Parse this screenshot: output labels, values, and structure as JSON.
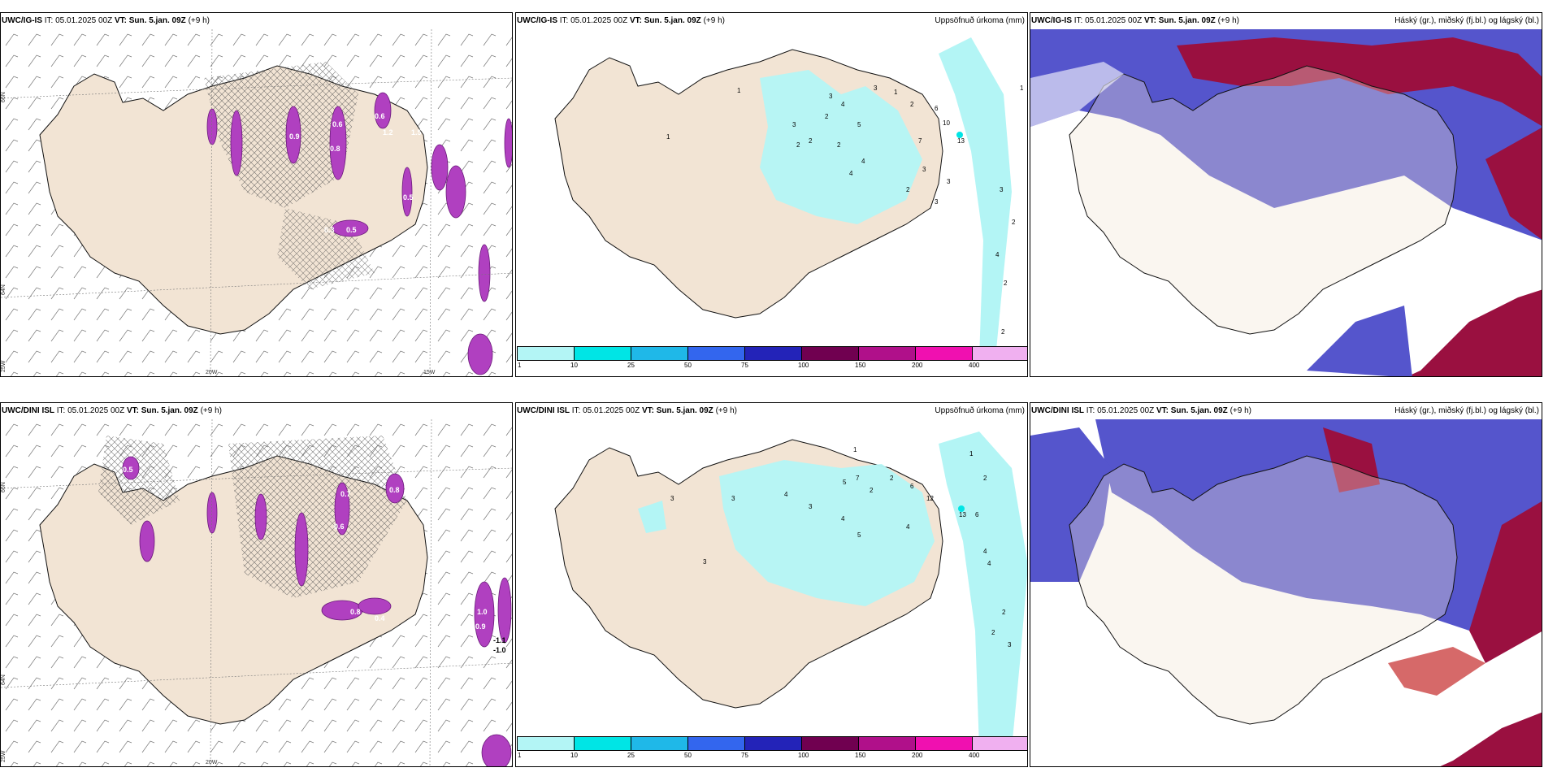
{
  "panels": [
    {
      "model": "UWC/IG-IS",
      "it": "IT: 05.01.2025 00Z",
      "vt": "VT: Sun. 5.jan. 09Z",
      "offset": "(+9 h)",
      "right": ""
    },
    {
      "model": "UWC/IG-IS",
      "it": "IT: 05.01.2025 00Z",
      "vt": "VT: Sun. 5.jan. 09Z",
      "offset": "(+9 h)",
      "right": "Uppsöfnuð úrkoma (mm)"
    },
    {
      "model": "UWC/IG-IS",
      "it": "IT: 05.01.2025 00Z",
      "vt": "VT: Sun. 5.jan. 09Z",
      "offset": "(+9 h)",
      "right": "Háský (gr.), miðský (fj.bl.) og lágský (bl.)"
    },
    {
      "model": "UWC/DINI ISL",
      "it": "IT: 05.01.2025 00Z",
      "vt": "VT: Sun. 5.jan. 09Z",
      "offset": "(+9 h)",
      "right": ""
    },
    {
      "model": "UWC/DINI ISL",
      "it": "IT: 05.01.2025 00Z",
      "vt": "VT: Sun. 5.jan. 09Z",
      "offset": "(+9 h)",
      "right": "Uppsöfnuð úrkoma (mm)"
    },
    {
      "model": "UWC/DINI ISL",
      "it": "IT: 05.01.2025 00Z",
      "vt": "VT: Sun. 5.jan. 09Z",
      "offset": "(+9 h)",
      "right": "Háský (gr.), miðský (fj.bl.) og lágský (bl.)"
    }
  ],
  "grid_labels": {
    "lat_top": "66N",
    "lat_bottom": "64N",
    "lon_left": "25W",
    "lon_mid": "20W",
    "lon_right": "15W"
  },
  "colorbar": {
    "ticks": [
      "1",
      "10",
      "25",
      "50",
      "75",
      "100",
      "150",
      "200",
      "400"
    ],
    "colors": [
      "#b3f5f5",
      "#00e5e5",
      "#1fb8e8",
      "#3366ee",
      "#2323b8",
      "#700050",
      "#b0108a",
      "#f010b0",
      "#f0b0f0"
    ]
  },
  "precip_labels_top": [
    "1",
    "3",
    "4",
    "3",
    "1",
    "2",
    "6",
    "10",
    "13",
    "2",
    "5",
    "7",
    "4",
    "3",
    "3",
    "4",
    "2",
    "3",
    "2",
    "2",
    "1",
    "1",
    "2",
    "2",
    "3",
    "3",
    "4",
    "2",
    "2",
    "1"
  ],
  "precip_labels_bottom": [
    "1",
    "1",
    "2",
    "6",
    "12",
    "13",
    "6",
    "3",
    "3",
    "4",
    "3",
    "5",
    "7",
    "2",
    "2",
    "4",
    "4",
    "5",
    "4",
    "4",
    "3",
    "2",
    "2",
    "3"
  ],
  "vort_labels_top": [
    "0.6",
    "1.2",
    "0.8",
    "0.9",
    "0.6",
    "0.5",
    "0.3",
    "0.5",
    "1.5",
    "0.7"
  ],
  "vort_labels_bottom": [
    "0.5",
    "0.7",
    "0.8",
    "0.6",
    "0.8",
    "0.4",
    "1.0",
    "0.9",
    "-1.1",
    "-1.0"
  ],
  "colors": {
    "land": "#f2e4d4",
    "coast": "#111111",
    "precip_light": "#b3f5f5",
    "precip_mid": "#00e5e5",
    "vort": "#b040c0",
    "vort_core": "#e080f0",
    "cloud_high": "#9a1040",
    "cloud_mid": "#5555cc",
    "hatch": "#555555"
  }
}
